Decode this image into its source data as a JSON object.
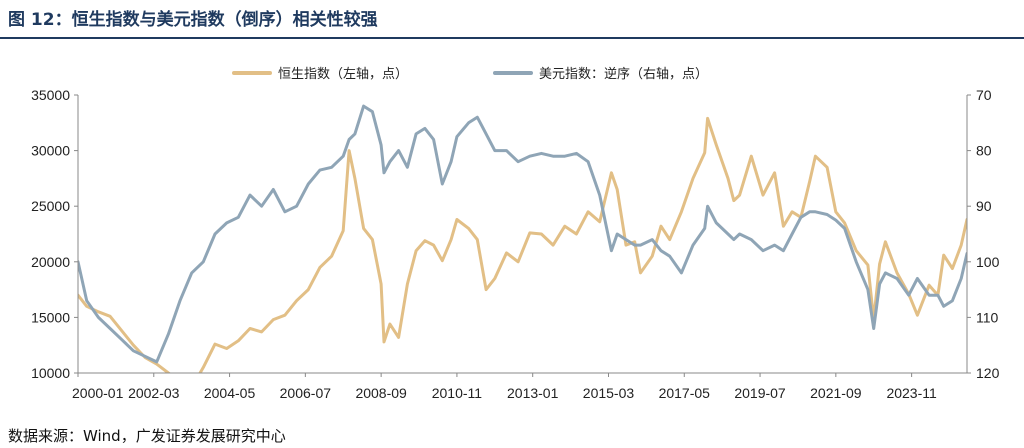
{
  "title": "图 12：恒生指数与美元指数（倒序）相关性较强",
  "source": "数据来源：Wind，广发证券发展研究中心",
  "colors": {
    "hsi": "#E2BF86",
    "dxy": "#8FA5B6",
    "title": "#1f3a5f"
  },
  "chart_data": {
    "type": "line",
    "title": "图 12：恒生指数与美元指数（倒序）相关性较强",
    "x_tick_labels": [
      "2000-01",
      "2002-03",
      "2004-05",
      "2006-07",
      "2008-09",
      "2010-11",
      "2013-01",
      "2015-03",
      "2017-05",
      "2019-07",
      "2021-09",
      "2023-11"
    ],
    "x_range": [
      "2000-01",
      "2025-06"
    ],
    "y_left": {
      "label": "恒生指数",
      "range": [
        10000,
        35000
      ],
      "ticks": [
        "10000",
        "15000",
        "20000",
        "25000",
        "30000",
        "35000"
      ]
    },
    "y_right": {
      "label": "美元指数",
      "range": [
        70,
        120
      ],
      "inverted": true,
      "ticks": [
        "70",
        "80",
        "90",
        "100",
        "110",
        "120"
      ]
    },
    "legend_position": "top-center",
    "grid": false,
    "series": [
      {
        "name": "恒生指数（左轴，点）",
        "axis": "left",
        "x": [
          "2000-01",
          "2000-04",
          "2000-08",
          "2000-12",
          "2001-04",
          "2001-08",
          "2001-12",
          "2002-04",
          "2002-08",
          "2002-12",
          "2003-04",
          "2003-08",
          "2003-12",
          "2004-04",
          "2004-08",
          "2004-12",
          "2005-04",
          "2005-08",
          "2005-12",
          "2006-04",
          "2006-08",
          "2006-12",
          "2007-04",
          "2007-08",
          "2007-10",
          "2007-12",
          "2008-03",
          "2008-06",
          "2008-09",
          "2008-10",
          "2008-12",
          "2009-03",
          "2009-06",
          "2009-09",
          "2009-12",
          "2010-03",
          "2010-06",
          "2010-09",
          "2010-11",
          "2011-03",
          "2011-06",
          "2011-09",
          "2011-12",
          "2012-04",
          "2012-08",
          "2012-12",
          "2013-04",
          "2013-08",
          "2013-12",
          "2014-04",
          "2014-08",
          "2014-12",
          "2015-04",
          "2015-06",
          "2015-09",
          "2015-12",
          "2016-02",
          "2016-06",
          "2016-09",
          "2016-12",
          "2017-04",
          "2017-08",
          "2017-12",
          "2018-01",
          "2018-04",
          "2018-08",
          "2018-10",
          "2018-12",
          "2019-04",
          "2019-08",
          "2019-12",
          "2020-03",
          "2020-06",
          "2020-09",
          "2020-12",
          "2021-02",
          "2021-06",
          "2021-09",
          "2021-12",
          "2022-04",
          "2022-08",
          "2022-10",
          "2022-12",
          "2023-02",
          "2023-06",
          "2023-10",
          "2024-01",
          "2024-05",
          "2024-08",
          "2024-10",
          "2025-01",
          "2025-04",
          "2025-06"
        ],
        "values": [
          17000,
          16000,
          15500,
          15100,
          13800,
          12500,
          11400,
          10800,
          10000,
          9300,
          8700,
          10500,
          12600,
          12200,
          12900,
          14000,
          13700,
          14800,
          15200,
          16500,
          17500,
          19500,
          20500,
          22800,
          30000,
          27500,
          23000,
          22000,
          18000,
          12800,
          14400,
          13200,
          18000,
          21000,
          21900,
          21500,
          20100,
          22000,
          23800,
          23000,
          22000,
          17500,
          18500,
          20800,
          20000,
          22600,
          22500,
          21500,
          23200,
          22500,
          24500,
          23600,
          28000,
          26500,
          21500,
          21800,
          19000,
          20500,
          23200,
          22000,
          24500,
          27500,
          29800,
          32900,
          30500,
          27500,
          25500,
          26000,
          29500,
          26000,
          28000,
          23200,
          24500,
          24000,
          27200,
          29500,
          28500,
          24500,
          23500,
          21000,
          19700,
          14800,
          19800,
          21800,
          19000,
          17100,
          15200,
          17900,
          17000,
          20600,
          19400,
          21500,
          23800
        ]
      },
      {
        "name": "美元指数：逆序（右轴，点）",
        "axis": "right",
        "x": [
          "2000-01",
          "2000-04",
          "2000-08",
          "2000-12",
          "2001-04",
          "2001-08",
          "2001-12",
          "2002-04",
          "2002-08",
          "2002-12",
          "2003-04",
          "2003-08",
          "2003-12",
          "2004-04",
          "2004-08",
          "2004-12",
          "2005-04",
          "2005-08",
          "2005-12",
          "2006-04",
          "2006-08",
          "2006-12",
          "2007-04",
          "2007-08",
          "2007-10",
          "2007-12",
          "2008-03",
          "2008-06",
          "2008-09",
          "2008-10",
          "2008-12",
          "2009-03",
          "2009-06",
          "2009-09",
          "2009-12",
          "2010-03",
          "2010-06",
          "2010-09",
          "2010-11",
          "2011-03",
          "2011-06",
          "2011-09",
          "2011-12",
          "2012-04",
          "2012-08",
          "2012-12",
          "2013-04",
          "2013-08",
          "2013-12",
          "2014-04",
          "2014-08",
          "2014-12",
          "2015-04",
          "2015-06",
          "2015-09",
          "2015-12",
          "2016-02",
          "2016-06",
          "2016-09",
          "2016-12",
          "2017-04",
          "2017-08",
          "2017-12",
          "2018-01",
          "2018-04",
          "2018-08",
          "2018-10",
          "2018-12",
          "2019-04",
          "2019-08",
          "2019-12",
          "2020-03",
          "2020-06",
          "2020-09",
          "2020-12",
          "2021-02",
          "2021-06",
          "2021-09",
          "2021-12",
          "2022-04",
          "2022-08",
          "2022-10",
          "2022-12",
          "2023-02",
          "2023-06",
          "2023-10",
          "2024-01",
          "2024-05",
          "2024-08",
          "2024-10",
          "2025-01",
          "2025-04",
          "2025-06"
        ],
        "values": [
          100,
          107,
          110,
          112,
          114,
          116,
          117,
          118,
          113,
          107,
          102,
          100,
          95,
          93,
          92,
          88,
          90,
          87,
          91,
          90,
          86,
          83.5,
          83,
          81,
          78,
          77,
          72,
          73,
          79,
          84,
          82,
          80,
          83,
          77,
          76,
          78,
          86,
          82,
          77.5,
          75,
          74,
          77,
          80,
          80,
          82,
          81,
          80.5,
          81,
          81,
          80.5,
          82,
          88,
          98,
          95,
          96,
          97,
          97,
          96,
          98,
          99,
          102,
          97,
          94,
          90,
          93,
          95,
          96,
          95,
          96,
          98,
          97,
          98,
          95,
          92,
          91,
          91,
          91.5,
          92.5,
          94,
          100,
          105,
          112,
          104,
          102,
          103,
          106,
          103,
          106,
          106,
          108,
          107,
          103,
          98.5
        ]
      }
    ]
  }
}
